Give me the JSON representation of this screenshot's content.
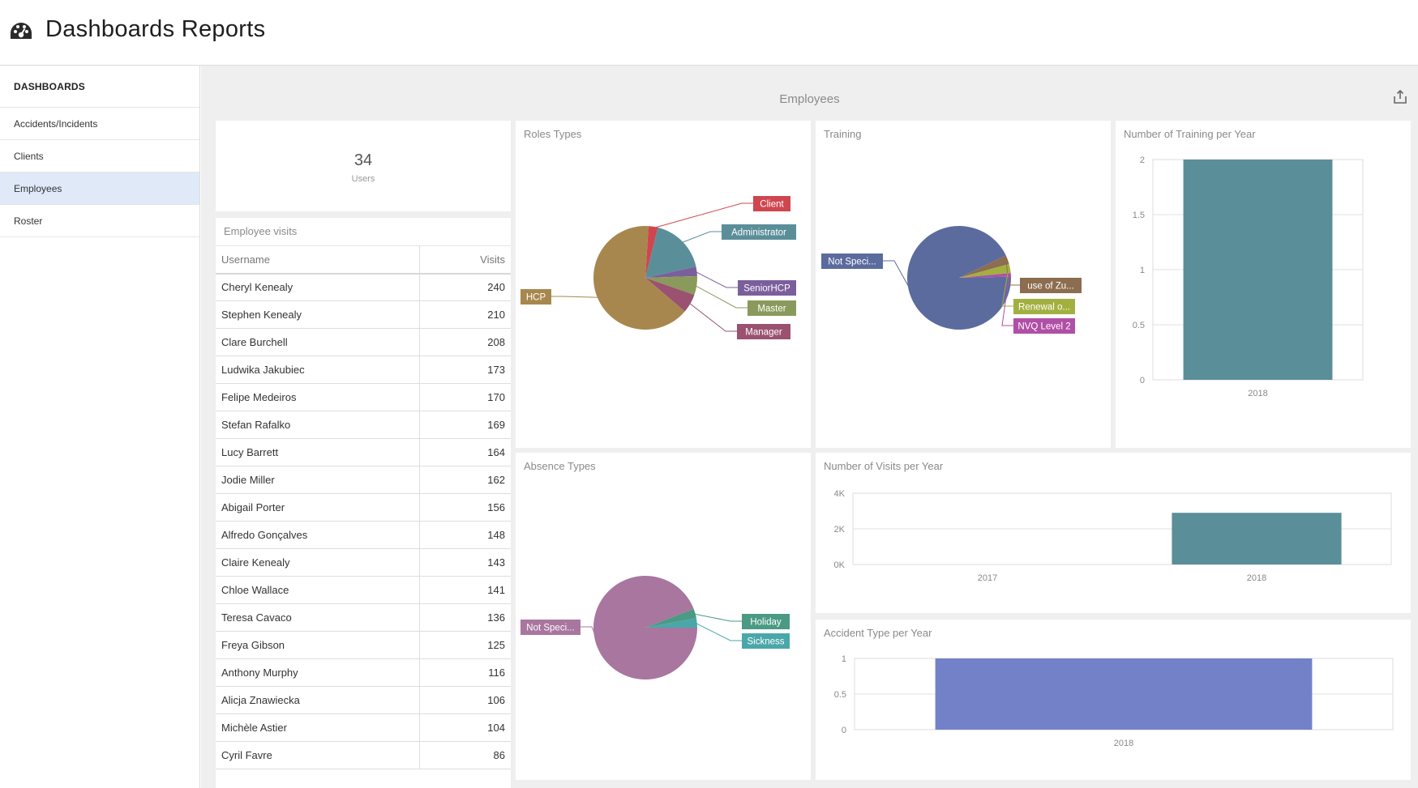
{
  "header": {
    "title": "Dashboards Reports",
    "icon": "dashboard-icon"
  },
  "sidebar": {
    "heading": "DASHBOARDS",
    "items": [
      {
        "label": "Accidents/Incidents",
        "active": false
      },
      {
        "label": "Clients",
        "active": false
      },
      {
        "label": "Employees",
        "active": true
      },
      {
        "label": "Roster",
        "active": false
      }
    ]
  },
  "main": {
    "title": "Employees",
    "export_icon": "export-icon"
  },
  "kpi": {
    "value": "34",
    "label": "Users"
  },
  "visits_table": {
    "title": "Employee visits",
    "columns": [
      "Username",
      "Visits"
    ],
    "rows": [
      [
        "Cheryl Kenealy",
        "240"
      ],
      [
        "Stephen Kenealy",
        "210"
      ],
      [
        "Clare Burchell",
        "208"
      ],
      [
        "Ludwika Jakubiec",
        "173"
      ],
      [
        "Felipe Medeiros",
        "170"
      ],
      [
        "Stefan Rafalko",
        "169"
      ],
      [
        "Lucy Barrett",
        "164"
      ],
      [
        "Jodie Miller",
        "162"
      ],
      [
        "Abigail Porter",
        "156"
      ],
      [
        "Alfredo Gonçalves",
        "148"
      ],
      [
        "Claire Kenealy",
        "143"
      ],
      [
        "Chloe Wallace",
        "141"
      ],
      [
        "Teresa Cavaco",
        "136"
      ],
      [
        "Freya Gibson",
        "125"
      ],
      [
        "Anthony Murphy",
        "116"
      ],
      [
        "Alicja Znawiecka",
        "106"
      ],
      [
        "Michèle Astier",
        "104"
      ],
      [
        "Cyril Favre",
        "86"
      ]
    ]
  },
  "chart_data": [
    {
      "id": "roles",
      "type": "pie",
      "title": "Roles Types",
      "labels": [
        "Client",
        "Administrator",
        "SeniorHCP",
        "Master",
        "Manager",
        "HCP"
      ],
      "values": [
        1,
        6,
        1,
        2,
        2,
        22
      ],
      "colors": [
        "#d0464f",
        "#5a8f9a",
        "#7b5f9c",
        "#8a9a5b",
        "#9a5270",
        "#a8874e"
      ]
    },
    {
      "id": "training",
      "type": "pie",
      "title": "Training",
      "labels": [
        "Not Speci...",
        "use of Zu...",
        "Renewal o...",
        "NVQ Level 2"
      ],
      "values": [
        33,
        1,
        1,
        0.4
      ],
      "colors": [
        "#5b6b9e",
        "#8c6d50",
        "#a2b040",
        "#b04fa6"
      ]
    },
    {
      "id": "absence",
      "type": "pie",
      "title": "Absence Types",
      "labels": [
        "Not Speci...",
        "Holiday",
        "Sickness"
      ],
      "values": [
        32,
        1,
        1
      ],
      "colors": [
        "#a8769e",
        "#4a9a84",
        "#4aa7a9"
      ]
    },
    {
      "id": "training_per_year",
      "type": "bar",
      "title": "Number of Training per Year",
      "categories": [
        "2018"
      ],
      "values": [
        2
      ],
      "yticks": [
        "0",
        "0.5",
        "1",
        "1.5",
        "2"
      ],
      "ylim": [
        0,
        2
      ],
      "color": "#5a8f9a"
    },
    {
      "id": "visits_per_year",
      "type": "bar",
      "title": "Number of Visits per Year",
      "categories": [
        "2017",
        "2018"
      ],
      "values": [
        0,
        2900
      ],
      "yticks": [
        "0K",
        "2K",
        "4K"
      ],
      "ylim": [
        0,
        4000
      ],
      "color": "#5a8f9a"
    },
    {
      "id": "accident_per_year",
      "type": "bar",
      "title": "Accident Type per Year",
      "categories": [
        "2018"
      ],
      "values": [
        1
      ],
      "yticks": [
        "0",
        "0.5",
        "1"
      ],
      "ylim": [
        0,
        1
      ],
      "color": "#7382c8"
    }
  ]
}
